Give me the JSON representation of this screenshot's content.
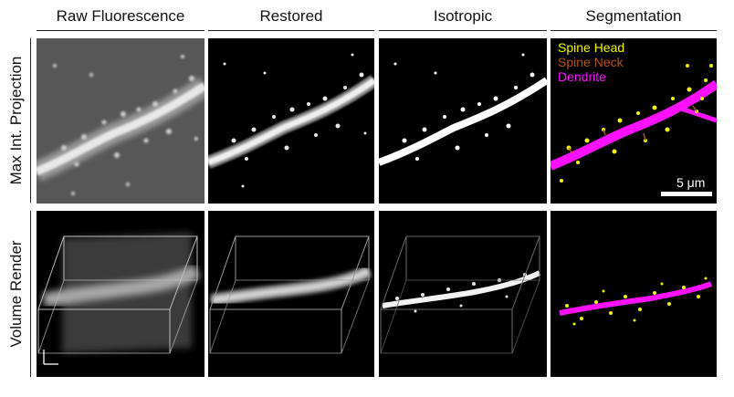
{
  "columns": {
    "raw": "Raw Fluorescence",
    "restored": "Restored",
    "isotropic": "Isotropic",
    "segmentation": "Segmentation"
  },
  "rows": {
    "mip": "Max Int. Projection",
    "volume": "Volume Render"
  },
  "legend": {
    "head": {
      "label": "Spine Head",
      "color": "#f5f500"
    },
    "neck": {
      "label": "Spine Neck",
      "color": "#b5541c"
    },
    "dendrite": {
      "label": "Dendrite",
      "color": "#ff10ff"
    }
  },
  "scale_bar_label": "5 μm",
  "colors": {
    "raw_background": "#555555",
    "panel_background": "#000000"
  }
}
